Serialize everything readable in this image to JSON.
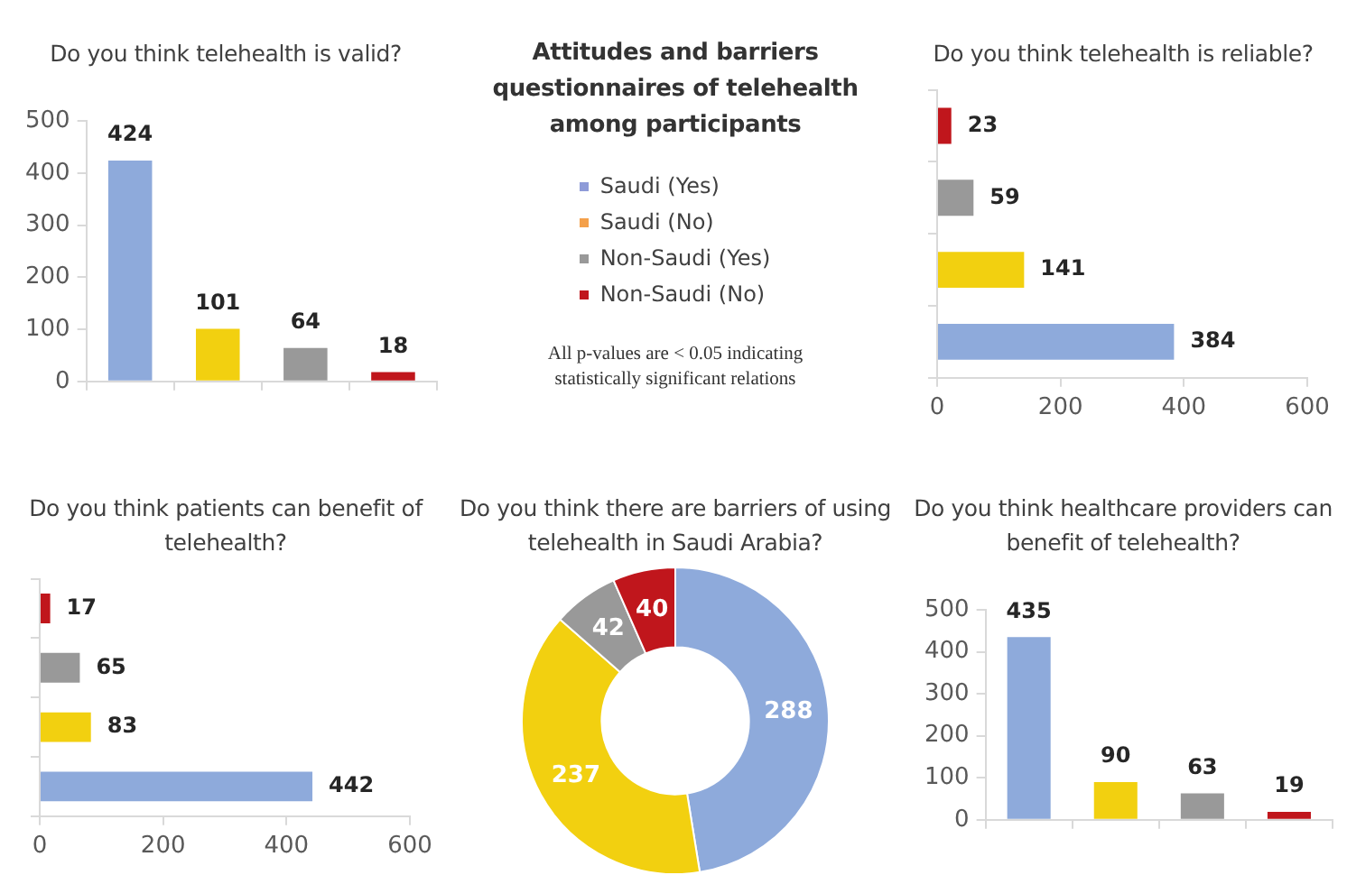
{
  "chart_data": [
    {
      "type": "bar",
      "title": "Do you think telehealth is valid?",
      "categories": [
        null,
        null,
        null,
        null
      ],
      "values": [
        424,
        101,
        64,
        18
      ],
      "colors": [
        "#8eaadb",
        "#f2d010",
        "#999999",
        "#c0161c"
      ],
      "ylim": [
        0,
        500
      ],
      "yticks": [
        0,
        100,
        200,
        300,
        400,
        500
      ],
      "data_labels": true
    },
    {
      "type": "other",
      "title": "Attitudes and barriers questionnaires of telehealth among participants",
      "legend": "center",
      "series": [
        {
          "name": "Saudi (Yes)",
          "color": "#8e9bd8"
        },
        {
          "name": "Saudi (No)",
          "color": "#f4a04a"
        },
        {
          "name": "Non-Saudi (Yes)",
          "color": "#999999"
        },
        {
          "name": "Non-Saudi (No)",
          "color": "#c0161c"
        }
      ],
      "annotations": [
        "All p-values are < 0.05 indicating statistically significant relations"
      ]
    },
    {
      "type": "bar",
      "orientation": "horizontal",
      "title": "Do you think telehealth is reliable?",
      "categories": [
        null,
        null,
        null,
        null
      ],
      "values": [
        23,
        59,
        141,
        384
      ],
      "colors": [
        "#c0161c",
        "#999999",
        "#f2d010",
        "#8eaadb"
      ],
      "xlim": [
        0,
        600
      ],
      "xticks": [
        0,
        200,
        400,
        600
      ],
      "data_labels": true
    },
    {
      "type": "bar",
      "orientation": "horizontal",
      "title": "Do you think patients can benefit of telehealth?",
      "categories": [
        null,
        null,
        null,
        null
      ],
      "values": [
        17,
        65,
        83,
        442
      ],
      "colors": [
        "#c0161c",
        "#999999",
        "#f2d010",
        "#8eaadb"
      ],
      "xlim": [
        0,
        600
      ],
      "xticks": [
        0,
        200,
        400,
        600
      ],
      "data_labels": true
    },
    {
      "type": "donut",
      "title": "Do you think there are barriers of using telehealth in Saudi Arabia?",
      "categories": [
        null,
        null,
        null,
        null
      ],
      "values": [
        288,
        237,
        42,
        40
      ],
      "colors": [
        "#8eaadb",
        "#f2d010",
        "#999999",
        "#c0161c"
      ],
      "data_labels": true
    },
    {
      "type": "bar",
      "title": "Do you think healthcare providers can benefit of telehealth?",
      "categories": [
        null,
        null,
        null,
        null
      ],
      "values": [
        435,
        90,
        63,
        19
      ],
      "colors": [
        "#8eaadb",
        "#f2d010",
        "#999999",
        "#c0161c"
      ],
      "ylim": [
        0,
        500
      ],
      "yticks": [
        0,
        100,
        200,
        300,
        400,
        500
      ],
      "data_labels": true
    }
  ]
}
